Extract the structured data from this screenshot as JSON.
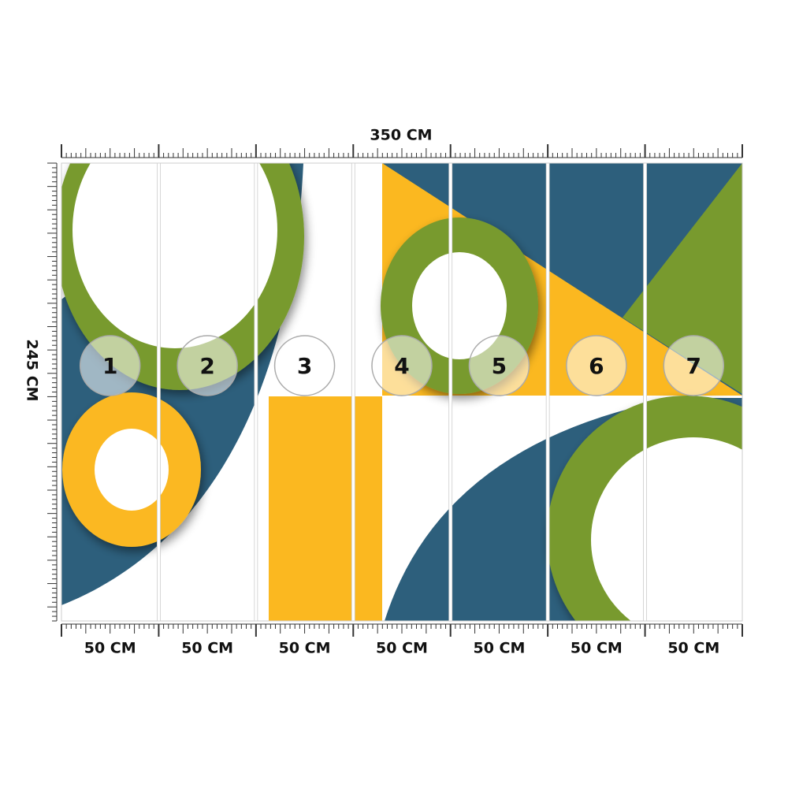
{
  "width_label": "350 CM",
  "height_label": "245 CM",
  "panels": [
    {
      "number": "1",
      "width_label": "50 CM"
    },
    {
      "number": "2",
      "width_label": "50 CM"
    },
    {
      "number": "3",
      "width_label": "50 CM"
    },
    {
      "number": "4",
      "width_label": "50 CM"
    },
    {
      "number": "5",
      "width_label": "50 CM"
    },
    {
      "number": "6",
      "width_label": "50 CM"
    },
    {
      "number": "7",
      "width_label": "50 CM"
    }
  ]
}
